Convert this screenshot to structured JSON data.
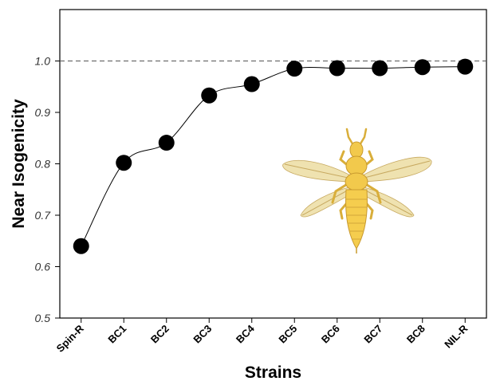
{
  "chart_data": {
    "type": "line",
    "title": "",
    "xlabel": "Strains",
    "ylabel": "Near Isogenicity",
    "categories": [
      "Spin-R",
      "BC1",
      "BC2",
      "BC3",
      "BC4",
      "BC5",
      "BC6",
      "BC7",
      "BC8",
      "NIL-R"
    ],
    "series": [
      {
        "values": [
          0.64,
          0.802,
          0.841,
          0.933,
          0.955,
          0.985,
          0.986,
          0.986,
          0.988,
          0.989
        ]
      }
    ],
    "ylim": [
      0.5,
      1.1
    ],
    "yticks": [
      "0.5",
      "0.6",
      "0.7",
      "0.8",
      "0.9",
      "1.0"
    ],
    "reference_line": {
      "y": 1.0,
      "style": "dashed"
    },
    "grid": false,
    "legend": "none",
    "colors": {
      "marker": "#000000",
      "line": "#000000",
      "reference": "#555555",
      "insect_body": "#f2c94c",
      "insect_wing": "#e8d9a0"
    },
    "illustration": "thrips-insect-icon"
  }
}
